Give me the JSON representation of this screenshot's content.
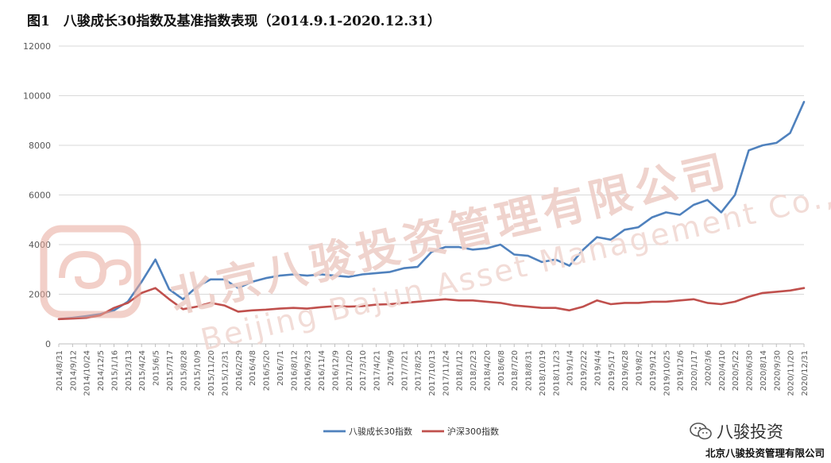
{
  "figure": {
    "title": "图1　八骏成长30指数及基准指数表现（2014.9.1-2020.12.31）",
    "footer_company": "北京八骏投资管理有限公司",
    "brand_text": "八骏投资",
    "watermark": {
      "line1": "北京八骏投资管理有限公司",
      "line2": "Beijing Bajun Asset Management Co.,Ltd."
    }
  },
  "colors": {
    "series_primary": "#4f81bd",
    "series_benchmark": "#c0504d",
    "gridline": "#d9d9d9",
    "axis_text": "#595959",
    "watermark": "#ecc9c0"
  },
  "chart_data": {
    "type": "line",
    "title": "",
    "xlabel": "",
    "ylabel": "",
    "ylim": [
      0,
      12000
    ],
    "yticks": [
      0,
      2000,
      4000,
      6000,
      8000,
      10000,
      12000
    ],
    "grid": true,
    "legend_position": "bottom-center",
    "x_tick_labels": [
      "2014/8/31",
      "2014/9/12",
      "2014/10/24",
      "2014/12/5",
      "2015/1/16",
      "2015/3/13",
      "2015/4/24",
      "2015/6/5",
      "2015/7/17",
      "2015/8/28",
      "2015/10/9",
      "2015/11/20",
      "2015/12/31",
      "2016/2/29",
      "2016/4/8",
      "2016/5/20",
      "2016/7/1",
      "2016/8/12",
      "2016/9/23",
      "2016/11/4",
      "2016/12/9",
      "2017/1/20",
      "2017/3/10",
      "2017/4/21",
      "2017/6/9",
      "2017/7/21",
      "2017/8/25",
      "2017/10/13",
      "2017/11/24",
      "2018/1/12",
      "2018/2/23",
      "2018/4/20",
      "2018/6/8",
      "2018/7/20",
      "2018/8/31",
      "2018/10/19",
      "2018/11/23",
      "2019/1/4",
      "2019/2/22",
      "2019/4/4",
      "2019/5/17",
      "2019/6/28",
      "2019/8/2",
      "2019/9/12",
      "2019/10/25",
      "2019/12/6",
      "2020/1/17",
      "2020/3/6",
      "2020/4/10",
      "2020/5/22",
      "2020/6/30",
      "2020/8/14",
      "2020/9/30",
      "2020/11/20",
      "2020/12/31"
    ],
    "x": [
      "2014/8/31",
      "2014/9/12",
      "2014/10/24",
      "2014/12/5",
      "2015/1/16",
      "2015/3/13",
      "2015/4/24",
      "2015/6/5",
      "2015/7/17",
      "2015/8/28",
      "2015/10/9",
      "2015/11/20",
      "2015/12/31",
      "2016/2/29",
      "2016/4/8",
      "2016/5/20",
      "2016/7/1",
      "2016/8/12",
      "2016/9/23",
      "2016/11/4",
      "2016/12/9",
      "2017/1/20",
      "2017/3/10",
      "2017/4/21",
      "2017/6/9",
      "2017/7/21",
      "2017/8/25",
      "2017/10/13",
      "2017/11/24",
      "2018/1/12",
      "2018/2/23",
      "2018/4/20",
      "2018/6/8",
      "2018/7/20",
      "2018/8/31",
      "2018/10/19",
      "2018/11/23",
      "2019/1/4",
      "2019/2/22",
      "2019/4/4",
      "2019/5/17",
      "2019/6/28",
      "2019/8/2",
      "2019/9/12",
      "2019/10/25",
      "2019/12/6",
      "2020/1/17",
      "2020/3/6",
      "2020/4/10",
      "2020/5/22",
      "2020/6/30",
      "2020/8/14",
      "2020/9/30",
      "2020/11/20",
      "2020/12/31"
    ],
    "series": [
      {
        "name": "八骏成长30指数",
        "color": "#4f81bd",
        "values": [
          1000,
          1050,
          1120,
          1200,
          1350,
          1700,
          2500,
          3400,
          2200,
          1800,
          2300,
          2600,
          2600,
          2250,
          2500,
          2650,
          2750,
          2800,
          2750,
          2800,
          2750,
          2700,
          2800,
          2850,
          2900,
          3050,
          3100,
          3700,
          3900,
          3900,
          3800,
          3850,
          4000,
          3600,
          3550,
          3300,
          3400,
          3150,
          3800,
          4300,
          4200,
          4600,
          4700,
          5100,
          5300,
          5200,
          5600,
          5800,
          5300,
          6000,
          7800,
          8000,
          8100,
          8500,
          9750
        ]
      },
      {
        "name": "沪深300指数",
        "color": "#c0504d",
        "values": [
          1000,
          1020,
          1050,
          1150,
          1450,
          1650,
          2050,
          2250,
          1800,
          1400,
          1500,
          1650,
          1550,
          1300,
          1350,
          1380,
          1420,
          1450,
          1420,
          1480,
          1520,
          1500,
          1520,
          1580,
          1600,
          1650,
          1700,
          1750,
          1800,
          1750,
          1750,
          1700,
          1650,
          1550,
          1500,
          1450,
          1450,
          1350,
          1500,
          1750,
          1600,
          1650,
          1650,
          1700,
          1700,
          1750,
          1800,
          1650,
          1600,
          1700,
          1900,
          2050,
          2100,
          2150,
          2250
        ]
      }
    ]
  }
}
